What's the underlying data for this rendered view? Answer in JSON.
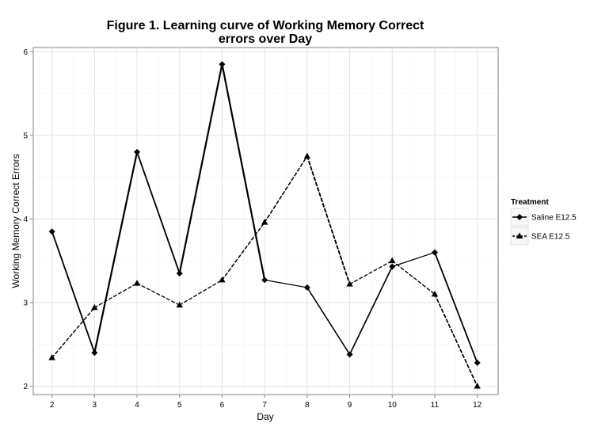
{
  "chart_data": {
    "type": "line",
    "title_line1": "Figure 1. Learning curve of Working Memory Correct",
    "title_line2": "errors over Day",
    "xlabel": "Day",
    "ylabel": "Working Memory Correct Errors",
    "x": [
      2,
      3,
      4,
      5,
      6,
      7,
      8,
      9,
      10,
      11,
      12
    ],
    "xlim": [
      1.56,
      12.49
    ],
    "ylim": [
      1.9,
      6.05
    ],
    "y_ticks": [
      2,
      3,
      4,
      5,
      6
    ],
    "grid": true,
    "legend": {
      "title": "Treatment",
      "position": "right"
    },
    "series": [
      {
        "name": "Saline E12.5",
        "marker": "diamond",
        "dash": "solid",
        "values": [
          3.85,
          2.4,
          4.8,
          3.35,
          5.85,
          3.27,
          3.18,
          2.38,
          3.43,
          3.6,
          2.28
        ]
      },
      {
        "name": "SEA E12.5",
        "marker": "triangle",
        "dash": "dashed",
        "values": [
          2.34,
          2.94,
          3.23,
          2.97,
          3.27,
          3.96,
          4.75,
          3.22,
          3.5,
          3.1,
          2.0
        ]
      }
    ]
  }
}
